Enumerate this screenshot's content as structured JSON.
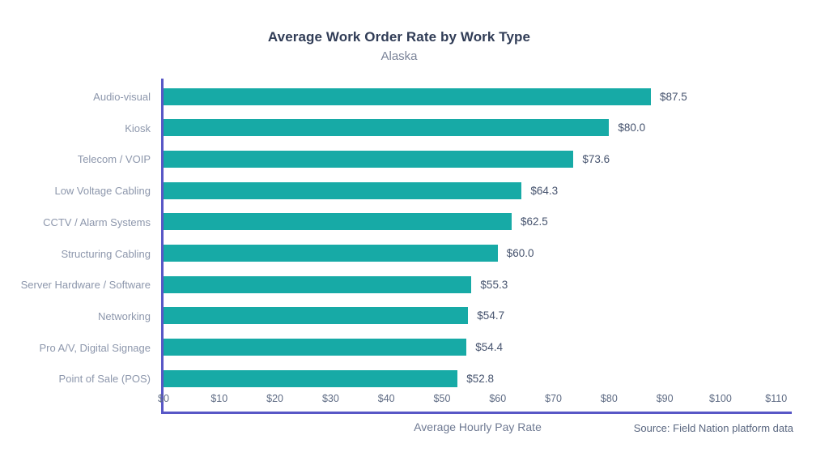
{
  "header": {
    "title": "Average Work Order Rate by Work Type",
    "subtitle": "Alaska"
  },
  "footer": {
    "xlabel": "Average Hourly Pay Rate",
    "source": "Source: Field Nation platform data"
  },
  "colors": {
    "bar": "#17AAA6",
    "axis": "#5857C6",
    "title": "#303C56",
    "subtitle": "#7B8499",
    "category_label": "#8D97AC",
    "value_label": "#46536E",
    "tick_label": "#5D6A83"
  },
  "chart_data": {
    "type": "bar",
    "orientation": "horizontal",
    "title": "Average Work Order Rate by Work Type",
    "subtitle": "Alaska",
    "xlabel": "Average Hourly Pay Rate",
    "source": "Source: Field Nation platform data",
    "categories": [
      "Audio-visual",
      "Kiosk",
      "Telecom / VOIP",
      "Low Voltage Cabling",
      "CCTV / Alarm Systems",
      "Structuring Cabling",
      "Server Hardware / Software",
      "Networking",
      "Pro A/V, Digital Signage",
      "Point of Sale (POS)"
    ],
    "values": [
      87.5,
      80.0,
      73.6,
      64.3,
      62.5,
      60.0,
      55.3,
      54.7,
      54.4,
      52.8
    ],
    "value_labels": [
      "$87.5",
      "$80.0",
      "$73.6",
      "$64.3",
      "$62.5",
      "$60.0",
      "$55.3",
      "$54.7",
      "$54.4",
      "$52.8"
    ],
    "xtick_labels": [
      "$0",
      "$10",
      "$20",
      "$30",
      "$40",
      "$50",
      "$60",
      "$70",
      "$80",
      "$90",
      "$100",
      "$110"
    ],
    "xtick_values": [
      0,
      10,
      20,
      30,
      40,
      50,
      60,
      70,
      80,
      90,
      100,
      110
    ],
    "xlim": [
      0,
      112.8
    ],
    "grid": false,
    "legend": false
  }
}
